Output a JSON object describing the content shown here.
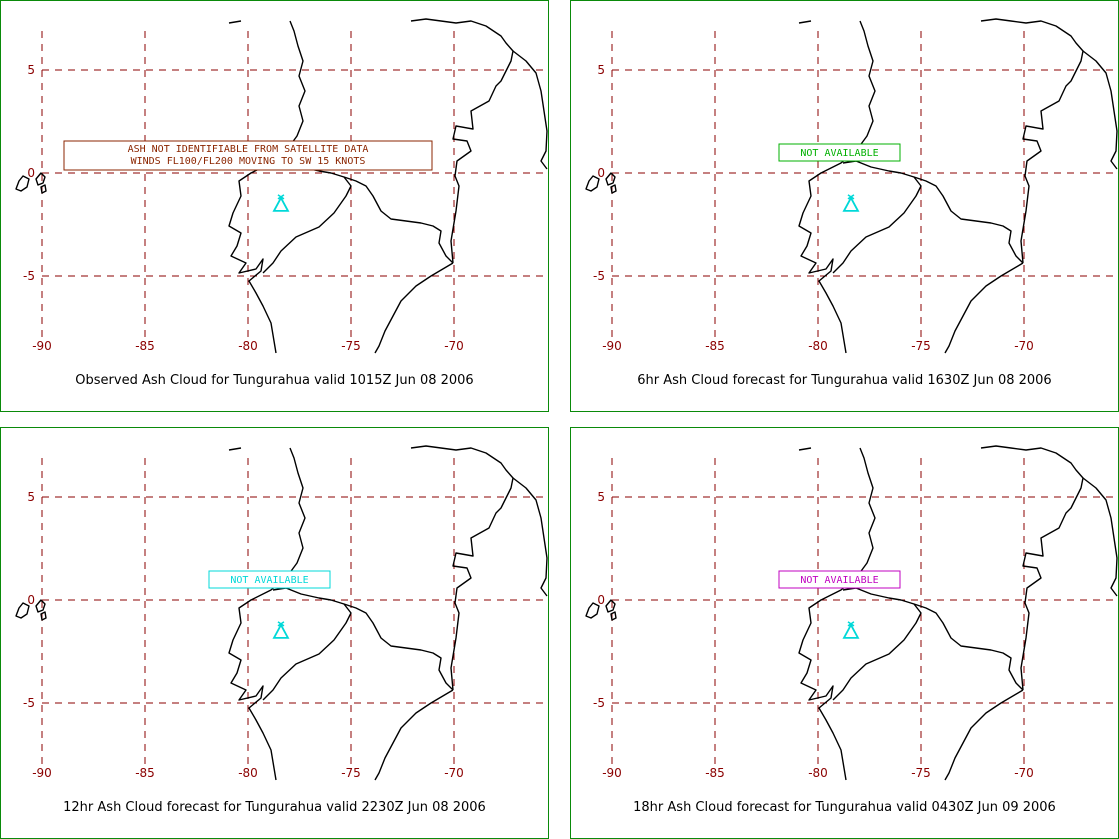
{
  "colors": {
    "border": "#0a8a0a",
    "grid": "#8b0000",
    "coast": "#000000",
    "volcano": "#00d8d8"
  },
  "axes": {
    "lon_labels": [
      "-90",
      "-85",
      "-80",
      "-75",
      "-70"
    ],
    "lat_labels": [
      "5",
      "0",
      "-5"
    ]
  },
  "volcano": {
    "icon": "volcano-triangle-icon",
    "lon": -78.4,
    "lat": -1.5
  },
  "panels": [
    {
      "caption": "Observed Ash Cloud for Tungurahua valid 1015Z Jun 08 2006",
      "notice_lines": [
        "ASH NOT IDENTIFIABLE FROM SATELLITE DATA",
        "WINDS FL100/FL200 MOVING TO SW 15 KNOTS"
      ],
      "notice_color": "#8b2500"
    },
    {
      "caption": "6hr Ash Cloud forecast for Tungurahua valid 1630Z Jun 08 2006",
      "notice_lines": [
        "NOT AVAILABLE"
      ],
      "notice_color": "#00b000"
    },
    {
      "caption": "12hr Ash Cloud forecast for Tungurahua valid 2230Z Jun 08 2006",
      "notice_lines": [
        "NOT AVAILABLE"
      ],
      "notice_color": "#00d8d8"
    },
    {
      "caption": "18hr Ash Cloud forecast for Tungurahua valid 0430Z Jun 09 2006",
      "notice_lines": [
        "NOT AVAILABLE"
      ],
      "notice_color": "#c000c0"
    }
  ]
}
